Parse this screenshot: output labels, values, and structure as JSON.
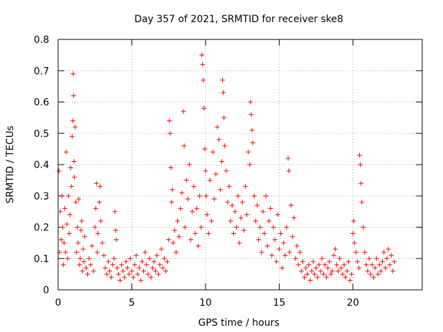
{
  "chart_data": {
    "type": "scatter",
    "title": "Day 357 of 2021, SRMTID for receiver ske8",
    "xlabel": "GPS time / hours",
    "ylabel": "SRMTID / TECUs",
    "xlim": [
      0,
      24.7
    ],
    "ylim": [
      0,
      0.8
    ],
    "xticks": [
      0,
      5,
      10,
      15,
      20
    ],
    "xtick_labels": [
      "0",
      "5",
      "10",
      "15",
      "20"
    ],
    "yticks": [
      0,
      0.1,
      0.2,
      0.3,
      0.4,
      0.5,
      0.6,
      0.7,
      0.8
    ],
    "ytick_labels": [
      "0",
      "0.1",
      "0.2",
      "0.3",
      "0.4",
      "0.5",
      "0.6",
      "0.7",
      "0.8"
    ],
    "grid": true,
    "marker": "+",
    "series_color": "#ff0000",
    "series": [
      {
        "name": "SRMTID",
        "points": [
          [
            0.05,
            0.38
          ],
          [
            0.1,
            0.12
          ],
          [
            0.15,
            0.25
          ],
          [
            0.2,
            0.16
          ],
          [
            0.25,
            0.3
          ],
          [
            0.3,
            0.2
          ],
          [
            0.35,
            0.08
          ],
          [
            0.4,
            0.15
          ],
          [
            0.45,
            0.26
          ],
          [
            0.5,
            0.12
          ],
          [
            0.55,
            0.44
          ],
          [
            0.6,
            0.21
          ],
          [
            0.65,
            0.1
          ],
          [
            0.7,
            0.3
          ],
          [
            0.75,
            0.18
          ],
          [
            0.8,
            0.24
          ],
          [
            0.85,
            0.39
          ],
          [
            0.9,
            0.33
          ],
          [
            0.95,
            0.49
          ],
          [
            1.0,
            0.54
          ],
          [
            1.02,
            0.69
          ],
          [
            1.05,
            0.62
          ],
          [
            1.08,
            0.41
          ],
          [
            1.1,
            0.36
          ],
          [
            1.15,
            0.52
          ],
          [
            1.2,
            0.28
          ],
          [
            1.25,
            0.12
          ],
          [
            1.3,
            0.2
          ],
          [
            1.35,
            0.15
          ],
          [
            1.4,
            0.29
          ],
          [
            1.45,
            0.08
          ],
          [
            1.5,
            0.1
          ],
          [
            1.55,
            0.19
          ],
          [
            1.6,
            0.22
          ],
          [
            1.65,
            0.06
          ],
          [
            1.7,
            0.13
          ],
          [
            1.75,
            0.09
          ],
          [
            1.8,
            0.17
          ],
          [
            1.9,
            0.07
          ],
          [
            2.0,
            0.05
          ],
          [
            2.1,
            0.1
          ],
          [
            2.2,
            0.08
          ],
          [
            2.3,
            0.14
          ],
          [
            2.4,
            0.06
          ],
          [
            2.5,
            0.2
          ],
          [
            2.55,
            0.26
          ],
          [
            2.6,
            0.34
          ],
          [
            2.65,
            0.12
          ],
          [
            2.7,
            0.18
          ],
          [
            2.8,
            0.28
          ],
          [
            2.85,
            0.33
          ],
          [
            2.9,
            0.22
          ],
          [
            3.0,
            0.15
          ],
          [
            3.1,
            0.11
          ],
          [
            3.2,
            0.07
          ],
          [
            3.3,
            0.05
          ],
          [
            3.4,
            0.09
          ],
          [
            3.5,
            0.06
          ],
          [
            3.6,
            0.04
          ],
          [
            3.7,
            0.08
          ],
          [
            3.8,
            0.1
          ],
          [
            3.85,
            0.25
          ],
          [
            3.9,
            0.19
          ],
          [
            3.95,
            0.16
          ],
          [
            4.0,
            0.07
          ],
          [
            4.1,
            0.05
          ],
          [
            4.2,
            0.03
          ],
          [
            4.3,
            0.08
          ],
          [
            4.4,
            0.06
          ],
          [
            4.5,
            0.04
          ],
          [
            4.6,
            0.09
          ],
          [
            4.7,
            0.07
          ],
          [
            4.8,
            0.05
          ],
          [
            4.9,
            0.1
          ],
          [
            5.0,
            0.06
          ],
          [
            5.1,
            0.04
          ],
          [
            5.2,
            0.08
          ],
          [
            5.3,
            0.11
          ],
          [
            5.4,
            0.05
          ],
          [
            5.5,
            0.07
          ],
          [
            5.6,
            0.03
          ],
          [
            5.7,
            0.09
          ],
          [
            5.8,
            0.06
          ],
          [
            5.9,
            0.12
          ],
          [
            6.0,
            0.08
          ],
          [
            6.1,
            0.05
          ],
          [
            6.2,
            0.1
          ],
          [
            6.3,
            0.04
          ],
          [
            6.4,
            0.07
          ],
          [
            6.5,
            0.09
          ],
          [
            6.6,
            0.06
          ],
          [
            6.7,
            0.11
          ],
          [
            6.8,
            0.05
          ],
          [
            6.9,
            0.08
          ],
          [
            7.0,
            0.13
          ],
          [
            7.1,
            0.07
          ],
          [
            7.2,
            0.1
          ],
          [
            7.3,
            0.06
          ],
          [
            7.4,
            0.09
          ],
          [
            7.5,
            0.16
          ],
          [
            7.55,
            0.54
          ],
          [
            7.6,
            0.5
          ],
          [
            7.65,
            0.39
          ],
          [
            7.7,
            0.28
          ],
          [
            7.75,
            0.32
          ],
          [
            7.8,
            0.15
          ],
          [
            7.9,
            0.19
          ],
          [
            8.0,
            0.12
          ],
          [
            8.1,
            0.22
          ],
          [
            8.2,
            0.17
          ],
          [
            8.3,
            0.26
          ],
          [
            8.4,
            0.31
          ],
          [
            8.5,
            0.57
          ],
          [
            8.55,
            0.46
          ],
          [
            8.6,
            0.2
          ],
          [
            8.7,
            0.35
          ],
          [
            8.8,
            0.29
          ],
          [
            8.9,
            0.4
          ],
          [
            9.0,
            0.16
          ],
          [
            9.1,
            0.25
          ],
          [
            9.2,
            0.33
          ],
          [
            9.3,
            0.18
          ],
          [
            9.4,
            0.26
          ],
          [
            9.5,
            0.14
          ],
          [
            9.6,
            0.3
          ],
          [
            9.7,
            0.2
          ],
          [
            9.75,
            0.75
          ],
          [
            9.8,
            0.72
          ],
          [
            9.85,
            0.67
          ],
          [
            9.9,
            0.58
          ],
          [
            9.95,
            0.45
          ],
          [
            10.0,
            0.38
          ],
          [
            10.05,
            0.3
          ],
          [
            10.1,
            0.24
          ],
          [
            10.2,
            0.18
          ],
          [
            10.3,
            0.35
          ],
          [
            10.4,
            0.22
          ],
          [
            10.5,
            0.44
          ],
          [
            10.6,
            0.29
          ],
          [
            10.7,
            0.37
          ],
          [
            10.8,
            0.52
          ],
          [
            10.9,
            0.48
          ],
          [
            11.0,
            0.32
          ],
          [
            11.1,
            0.41
          ],
          [
            11.15,
            0.67
          ],
          [
            11.2,
            0.63
          ],
          [
            11.25,
            0.55
          ],
          [
            11.3,
            0.46
          ],
          [
            11.4,
            0.38
          ],
          [
            11.5,
            0.28
          ],
          [
            11.6,
            0.33
          ],
          [
            11.7,
            0.22
          ],
          [
            11.8,
            0.27
          ],
          [
            11.9,
            0.18
          ],
          [
            12.0,
            0.25
          ],
          [
            12.1,
            0.2
          ],
          [
            12.2,
            0.3
          ],
          [
            12.3,
            0.15
          ],
          [
            12.4,
            0.23
          ],
          [
            12.5,
            0.28
          ],
          [
            12.6,
            0.19
          ],
          [
            12.7,
            0.33
          ],
          [
            12.8,
            0.24
          ],
          [
            12.9,
            0.44
          ],
          [
            13.0,
            0.4
          ],
          [
            13.05,
            0.6
          ],
          [
            13.1,
            0.56
          ],
          [
            13.15,
            0.51
          ],
          [
            13.2,
            0.47
          ],
          [
            13.3,
            0.3
          ],
          [
            13.4,
            0.22
          ],
          [
            13.5,
            0.27
          ],
          [
            13.6,
            0.16
          ],
          [
            13.7,
            0.2
          ],
          [
            13.8,
            0.12
          ],
          [
            13.9,
            0.25
          ],
          [
            14.0,
            0.18
          ],
          [
            14.1,
            0.3
          ],
          [
            14.2,
            0.14
          ],
          [
            14.3,
            0.22
          ],
          [
            14.4,
            0.26
          ],
          [
            14.5,
            0.11
          ],
          [
            14.6,
            0.2
          ],
          [
            14.7,
            0.16
          ],
          [
            14.8,
            0.09
          ],
          [
            14.9,
            0.24
          ],
          [
            15.0,
            0.13
          ],
          [
            15.1,
            0.18
          ],
          [
            15.2,
            0.07
          ],
          [
            15.3,
            0.15
          ],
          [
            15.4,
            0.11
          ],
          [
            15.5,
            0.2
          ],
          [
            15.6,
            0.42
          ],
          [
            15.65,
            0.38
          ],
          [
            15.7,
            0.12
          ],
          [
            15.8,
            0.27
          ],
          [
            15.9,
            0.17
          ],
          [
            16.0,
            0.23
          ],
          [
            16.1,
            0.1
          ],
          [
            16.2,
            0.14
          ],
          [
            16.3,
            0.08
          ],
          [
            16.4,
            0.12
          ],
          [
            16.5,
            0.06
          ],
          [
            16.6,
            0.09
          ],
          [
            16.7,
            0.04
          ],
          [
            16.8,
            0.07
          ],
          [
            16.9,
            0.05
          ],
          [
            17.0,
            0.08
          ],
          [
            17.1,
            0.03
          ],
          [
            17.2,
            0.06
          ],
          [
            17.3,
            0.09
          ],
          [
            17.4,
            0.05
          ],
          [
            17.5,
            0.07
          ],
          [
            17.6,
            0.04
          ],
          [
            17.7,
            0.08
          ],
          [
            17.8,
            0.06
          ],
          [
            17.9,
            0.1
          ],
          [
            18.0,
            0.05
          ],
          [
            18.1,
            0.08
          ],
          [
            18.2,
            0.04
          ],
          [
            18.3,
            0.07
          ],
          [
            18.4,
            0.09
          ],
          [
            18.5,
            0.05
          ],
          [
            18.6,
            0.06
          ],
          [
            18.7,
            0.11
          ],
          [
            18.8,
            0.13
          ],
          [
            18.9,
            0.08
          ],
          [
            19.0,
            0.06
          ],
          [
            19.1,
            0.1
          ],
          [
            19.2,
            0.07
          ],
          [
            19.3,
            0.05
          ],
          [
            19.4,
            0.08
          ],
          [
            19.5,
            0.04
          ],
          [
            19.6,
            0.06
          ],
          [
            19.7,
            0.09
          ],
          [
            19.8,
            0.03
          ],
          [
            19.9,
            0.05
          ],
          [
            20.0,
            0.18
          ],
          [
            20.05,
            0.22
          ],
          [
            20.1,
            0.15
          ],
          [
            20.2,
            0.12
          ],
          [
            20.3,
            0.09
          ],
          [
            20.4,
            0.07
          ],
          [
            20.45,
            0.43
          ],
          [
            20.5,
            0.4
          ],
          [
            20.55,
            0.34
          ],
          [
            20.6,
            0.28
          ],
          [
            20.7,
            0.2
          ],
          [
            20.8,
            0.12
          ],
          [
            20.9,
            0.08
          ],
          [
            21.0,
            0.06
          ],
          [
            21.1,
            0.1
          ],
          [
            21.2,
            0.05
          ],
          [
            21.3,
            0.08
          ],
          [
            21.4,
            0.04
          ],
          [
            21.5,
            0.07
          ],
          [
            21.6,
            0.1
          ],
          [
            21.7,
            0.05
          ],
          [
            21.8,
            0.08
          ],
          [
            21.9,
            0.06
          ],
          [
            22.0,
            0.09
          ],
          [
            22.1,
            0.12
          ],
          [
            22.2,
            0.07
          ],
          [
            22.3,
            0.1
          ],
          [
            22.4,
            0.13
          ],
          [
            22.5,
            0.08
          ],
          [
            22.6,
            0.11
          ],
          [
            22.7,
            0.06
          ],
          [
            22.8,
            0.09
          ]
        ]
      }
    ]
  }
}
